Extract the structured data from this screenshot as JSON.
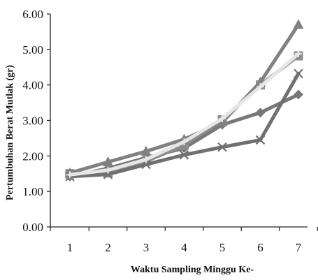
{
  "chart_data": {
    "type": "line",
    "title": "",
    "xlabel": "Waktu Sampling Minggu Ke-",
    "ylabel": "Pertumbuhan Berat Mutlak (gr)",
    "x": [
      1,
      2,
      3,
      4,
      5,
      6,
      7
    ],
    "x_tick_labels": [
      "1",
      "2",
      "3",
      "4",
      "5",
      "6",
      "7"
    ],
    "y_tick_labels": [
      "0.00",
      "1.00",
      "2.00",
      "3.00",
      "4.00",
      "5.00",
      "6.00"
    ],
    "ylim": [
      0,
      6
    ],
    "grid": false,
    "legend": "none",
    "series": [
      {
        "marker": "diamond",
        "color": "#787878",
        "values": [
          1.42,
          1.65,
          1.95,
          2.22,
          2.88,
          3.22,
          3.73
        ]
      },
      {
        "marker": "square",
        "color": "#8c8c8c",
        "values": [
          1.5,
          1.52,
          1.85,
          2.3,
          3.02,
          4.0,
          4.82
        ]
      },
      {
        "marker": "triangle",
        "color": "#818181",
        "values": [
          1.52,
          1.83,
          2.13,
          2.47,
          2.95,
          4.08,
          5.7
        ]
      },
      {
        "marker": "x",
        "color": "#707070",
        "values": [
          1.42,
          1.48,
          1.76,
          2.03,
          2.25,
          2.45,
          4.32
        ]
      },
      {
        "marker": "star",
        "color": "#e6e6e6",
        "values": [
          1.47,
          1.6,
          1.9,
          2.4,
          3.05,
          3.95,
          4.88
        ]
      }
    ]
  }
}
